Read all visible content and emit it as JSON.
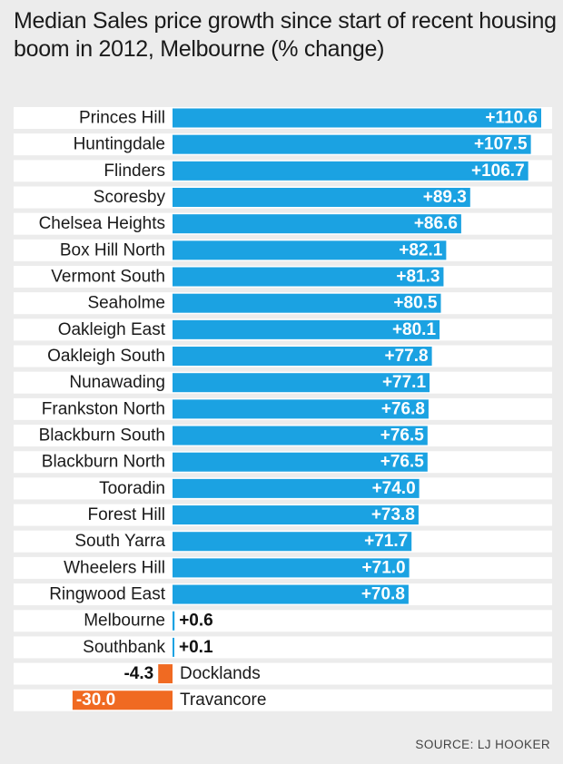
{
  "chart_data": {
    "type": "bar",
    "title": "Median Sales price growth since start of recent housing boom in 2012, Melbourne (% change)",
    "xlabel": "",
    "ylabel": "% change",
    "categories": [
      "Princes Hill",
      "Huntingdale",
      "Flinders",
      "Scoresby",
      "Chelsea Heights",
      "Box Hill North",
      "Vermont South",
      "Seaholme",
      "Oakleigh East",
      "Oakleigh South",
      "Nunawading",
      "Frankston North",
      "Blackburn South",
      "Blackburn North",
      "Tooradin",
      "Forest Hill",
      "South Yarra",
      "Wheelers Hill",
      "Ringwood East",
      "Melbourne",
      "Southbank",
      "Docklands",
      "Travancore"
    ],
    "values": [
      110.6,
      107.5,
      106.7,
      89.3,
      86.6,
      82.1,
      81.3,
      80.5,
      80.1,
      77.8,
      77.1,
      76.8,
      76.5,
      76.5,
      74.0,
      73.8,
      71.7,
      71.0,
      70.8,
      0.6,
      0.1,
      -4.3,
      -30.0
    ],
    "labels": [
      "+110.6",
      "+107.5",
      "+106.7",
      "+89.3",
      "+86.6",
      "+82.1",
      "+81.3",
      "+80.5",
      "+80.1",
      "+77.8",
      "+77.1",
      "+76.8",
      "+76.5",
      "+76.5",
      "+74.0",
      "+73.8",
      "+71.7",
      "+71.0",
      "+70.8",
      "+0.6",
      "+0.1",
      "-4.3",
      "-30.0"
    ],
    "xlim": [
      -30.0,
      110.6
    ],
    "colors": {
      "positive": "#1ba2e2",
      "negative": "#f06a22"
    },
    "source": "SOURCE: LJ HOOKER"
  }
}
